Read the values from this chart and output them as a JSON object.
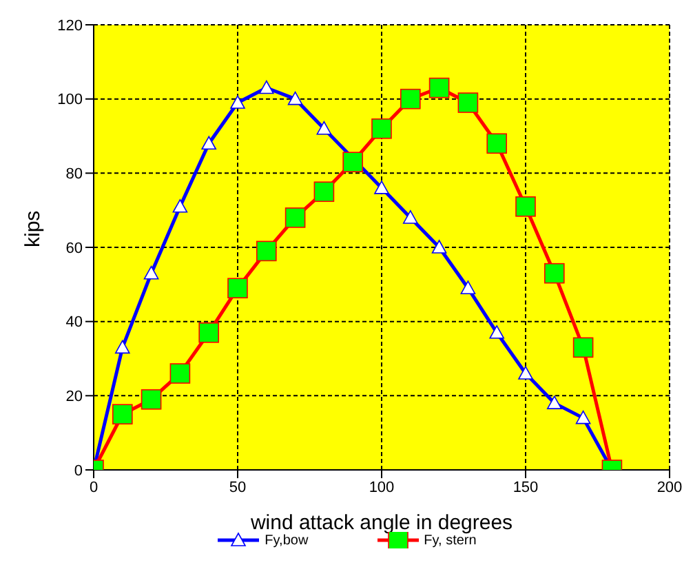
{
  "chart_data": {
    "type": "line",
    "xlabel": "wind attack angle in degrees",
    "ylabel": "kips",
    "x": [
      0,
      10,
      20,
      30,
      40,
      50,
      60,
      70,
      80,
      90,
      100,
      110,
      120,
      130,
      140,
      150,
      160,
      170,
      180
    ],
    "series": [
      {
        "name": "Fy,bow",
        "color": "#0000ff",
        "marker": "triangle",
        "values": [
          0,
          33,
          53,
          71,
          88,
          99,
          103,
          100,
          92,
          null,
          76,
          68,
          60,
          49,
          37,
          26,
          18,
          14,
          0
        ]
      },
      {
        "name": "Fy, stern",
        "color": "#ff0000",
        "marker": "square",
        "values": [
          0,
          15,
          19,
          26,
          37,
          49,
          59,
          68,
          75,
          83,
          92,
          100,
          103,
          99,
          88,
          71,
          53,
          33,
          0
        ]
      }
    ],
    "xlim": [
      0,
      200
    ],
    "xticks": [
      0,
      50,
      100,
      150,
      200
    ],
    "ylim": [
      0,
      120
    ],
    "yticks": [
      0,
      20,
      40,
      60,
      80,
      100,
      120
    ],
    "grid": true,
    "legend": "bottom",
    "line_style": "solid"
  }
}
